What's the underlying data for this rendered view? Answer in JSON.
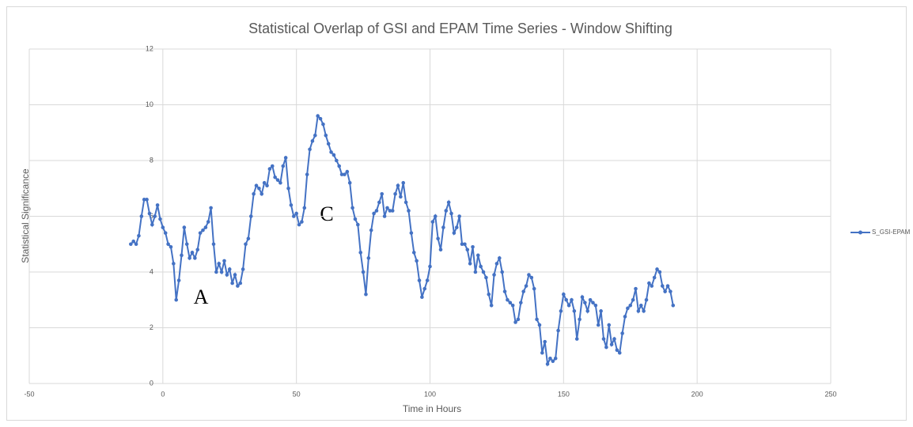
{
  "chart_data": {
    "type": "line",
    "title": "Statistical Overlap of GSI and EPAM Time Series - Window Shifting",
    "x_label": "Time in Hours",
    "y_label": "Statistical Significance",
    "annotations": [
      "A",
      "C"
    ],
    "xlim": [
      -50,
      250
    ],
    "xticks": [
      -50,
      0,
      50,
      100,
      150,
      200,
      250
    ],
    "ylim": [
      0,
      12
    ],
    "yticks": [
      0,
      2,
      4,
      6,
      8,
      10,
      12
    ],
    "grid": true,
    "legend": "right",
    "x": [
      -12,
      -11,
      -10,
      -9,
      -8,
      -7,
      -6,
      -5,
      -4,
      -3,
      -2,
      -1,
      0,
      1,
      2,
      3,
      4,
      5,
      6,
      7,
      8,
      9,
      10,
      11,
      12,
      13,
      14,
      15,
      16,
      17,
      18,
      19,
      20,
      21,
      22,
      23,
      24,
      25,
      26,
      27,
      28,
      29,
      30,
      31,
      32,
      33,
      34,
      35,
      36,
      37,
      38,
      39,
      40,
      41,
      42,
      43,
      44,
      45,
      46,
      47,
      48,
      49,
      50,
      51,
      52,
      53,
      54,
      55,
      56,
      57,
      58,
      59,
      60,
      61,
      62,
      63,
      64,
      65,
      66,
      67,
      68,
      69,
      70,
      71,
      72,
      73,
      74,
      75,
      76,
      77,
      78,
      79,
      80,
      81,
      82,
      83,
      84,
      85,
      86,
      87,
      88,
      89,
      90,
      91,
      92,
      93,
      94,
      95,
      96,
      97,
      98,
      99,
      100,
      101,
      102,
      103,
      104,
      105,
      106,
      107,
      108,
      109,
      110,
      111,
      112,
      113,
      114,
      115,
      116,
      117,
      118,
      119,
      120,
      121,
      122,
      123,
      124,
      125,
      126,
      127,
      128,
      129,
      130,
      131,
      132,
      133,
      134,
      135,
      136,
      137,
      138,
      139,
      140,
      141,
      142,
      143,
      144,
      145,
      146,
      147,
      148,
      149,
      150,
      151,
      152,
      153,
      154,
      155,
      156,
      157,
      158,
      159,
      160,
      161,
      162,
      163,
      164,
      165,
      166,
      167,
      168,
      169,
      170,
      171,
      172,
      173,
      174,
      175,
      176,
      177,
      178,
      179,
      180,
      181,
      182,
      183,
      184,
      185,
      186,
      187,
      188,
      189,
      190,
      191
    ],
    "series": [
      {
        "name": "S_GSI-EPAM",
        "color": "#4472c4",
        "values": [
          5.0,
          5.1,
          5.0,
          5.3,
          6.0,
          6.6,
          6.6,
          6.1,
          5.7,
          6.0,
          6.4,
          5.9,
          5.6,
          5.4,
          5.0,
          4.9,
          4.3,
          3.0,
          3.7,
          4.6,
          5.6,
          5.0,
          4.5,
          4.7,
          4.5,
          4.8,
          5.4,
          5.5,
          5.6,
          5.8,
          6.3,
          5.0,
          4.0,
          4.3,
          4.0,
          4.4,
          3.9,
          4.1,
          3.6,
          3.9,
          3.5,
          3.6,
          4.1,
          5.0,
          5.2,
          6.0,
          6.8,
          7.1,
          7.0,
          6.8,
          7.2,
          7.1,
          7.7,
          7.8,
          7.4,
          7.3,
          7.2,
          7.8,
          8.1,
          7.0,
          6.4,
          6.0,
          6.1,
          5.7,
          5.8,
          6.3,
          7.5,
          8.4,
          8.7,
          8.9,
          9.6,
          9.5,
          9.3,
          8.9,
          8.6,
          8.3,
          8.2,
          8.0,
          7.8,
          7.5,
          7.5,
          7.6,
          7.2,
          6.3,
          5.9,
          5.7,
          4.7,
          4.0,
          3.2,
          4.5,
          5.5,
          6.1,
          6.2,
          6.5,
          6.8,
          6.0,
          6.3,
          6.2,
          6.2,
          6.8,
          7.1,
          6.7,
          7.2,
          6.5,
          6.2,
          5.4,
          4.7,
          4.4,
          3.7,
          3.1,
          3.4,
          3.7,
          4.2,
          5.8,
          6.0,
          5.2,
          4.8,
          5.6,
          6.2,
          6.5,
          6.1,
          5.4,
          5.6,
          6.0,
          5.0,
          5.0,
          4.8,
          4.3,
          4.9,
          4.0,
          4.6,
          4.2,
          4.0,
          3.8,
          3.2,
          2.8,
          3.9,
          4.3,
          4.5,
          4.0,
          3.3,
          3.0,
          2.9,
          2.8,
          2.2,
          2.3,
          2.9,
          3.3,
          3.5,
          3.9,
          3.8,
          3.4,
          2.3,
          2.1,
          1.1,
          1.5,
          0.7,
          0.9,
          0.8,
          0.9,
          1.9,
          2.6,
          3.2,
          3.0,
          2.8,
          3.0,
          2.6,
          1.6,
          2.3,
          3.1,
          2.9,
          2.6,
          3.0,
          2.9,
          2.8,
          2.1,
          2.6,
          1.6,
          1.3,
          2.1,
          1.4,
          1.6,
          1.2,
          1.1,
          1.8,
          2.4,
          2.7,
          2.8,
          3.0,
          3.4,
          2.6,
          2.8,
          2.6,
          3.0,
          3.6,
          3.5,
          3.8,
          4.1,
          4.0,
          3.5,
          3.3,
          3.5,
          3.3,
          2.8
        ]
      }
    ]
  }
}
